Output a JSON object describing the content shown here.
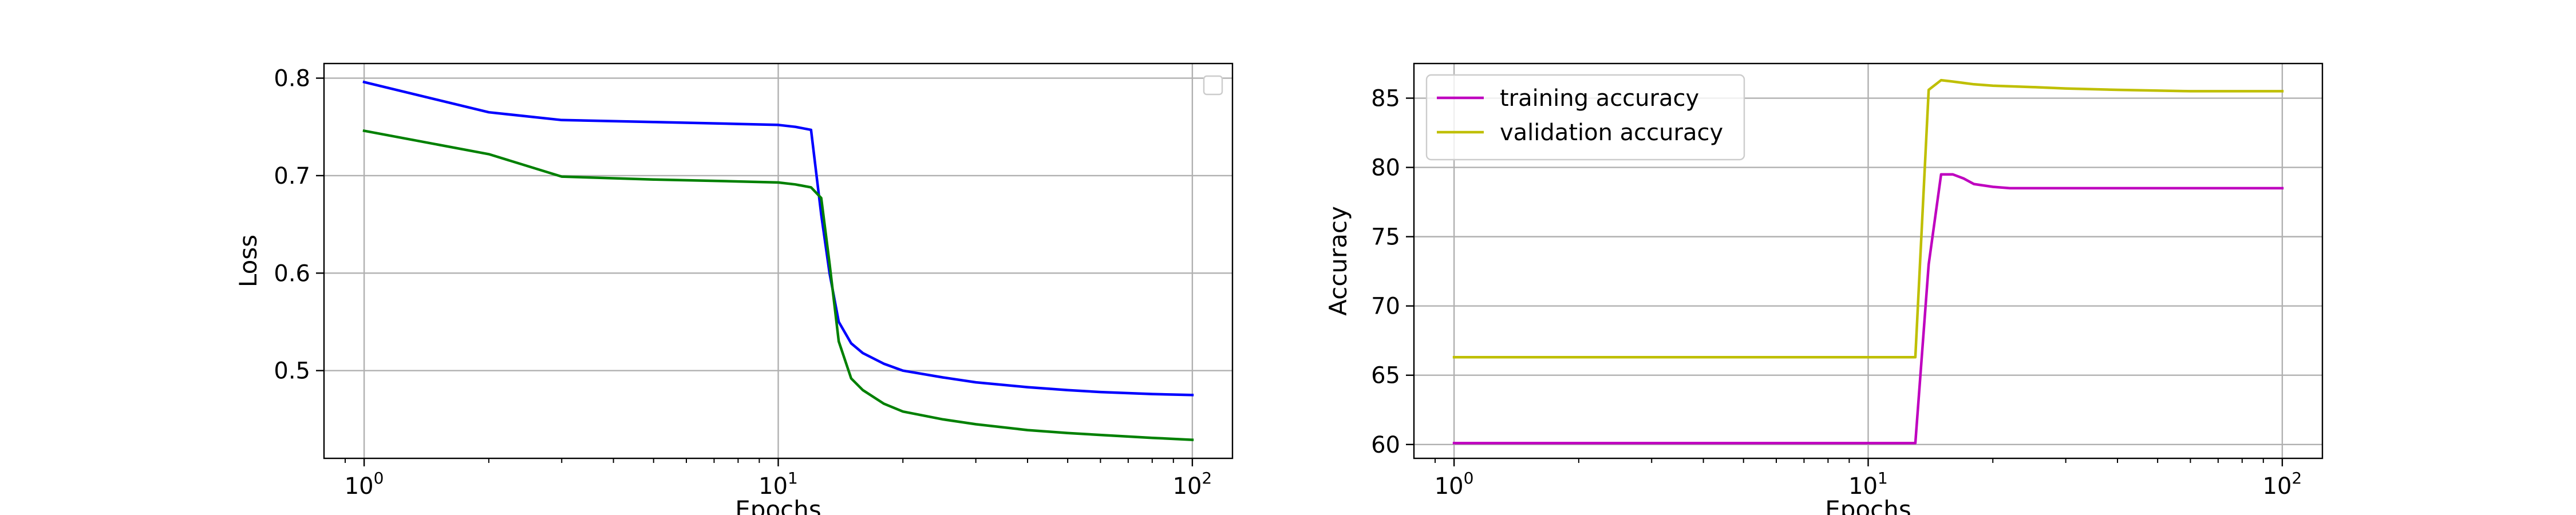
{
  "chart_data": [
    {
      "type": "line",
      "xlabel": "Epochs",
      "ylabel": "Loss",
      "xscale": "log",
      "xlim": [
        0.8,
        125
      ],
      "ylim": [
        0.41,
        0.815
      ],
      "xticks": [
        1,
        10,
        100
      ],
      "xtick_labels": [
        "10",
        "10",
        "10"
      ],
      "xtick_exponents": [
        "0",
        "1",
        "2"
      ],
      "yticks": [
        0.5,
        0.6,
        0.7,
        0.8
      ],
      "ytick_labels": [
        "0.5",
        "0.6",
        "0.7",
        "0.8"
      ],
      "grid": true,
      "legend": {
        "position": "top-right",
        "entries": []
      },
      "series": [
        {
          "color": "#0000ff",
          "x": [
            1,
            2,
            3,
            5,
            8,
            10,
            11,
            12,
            12.7,
            13.3,
            14,
            15,
            16,
            18,
            20,
            25,
            30,
            40,
            50,
            60,
            80,
            100
          ],
          "y": [
            0.796,
            0.765,
            0.757,
            0.755,
            0.753,
            0.752,
            0.75,
            0.747,
            0.66,
            0.6,
            0.55,
            0.528,
            0.518,
            0.507,
            0.5,
            0.493,
            0.488,
            0.483,
            0.48,
            0.478,
            0.476,
            0.475
          ]
        },
        {
          "color": "#008000",
          "x": [
            1,
            2,
            3,
            5,
            8,
            10,
            11,
            12,
            12.7,
            13.3,
            14,
            15,
            16,
            18,
            20,
            25,
            30,
            40,
            50,
            60,
            80,
            100
          ],
          "y": [
            0.746,
            0.722,
            0.699,
            0.696,
            0.694,
            0.693,
            0.691,
            0.688,
            0.677,
            0.61,
            0.53,
            0.492,
            0.48,
            0.466,
            0.458,
            0.45,
            0.445,
            0.439,
            0.436,
            0.434,
            0.431,
            0.429
          ]
        }
      ]
    },
    {
      "type": "line",
      "xlabel": "Epochs",
      "ylabel": "Accuracy",
      "xscale": "log",
      "xlim": [
        0.8,
        125
      ],
      "ylim": [
        59.0,
        87.5
      ],
      "xticks": [
        1,
        10,
        100
      ],
      "xtick_labels": [
        "10",
        "10",
        "10"
      ],
      "xtick_exponents": [
        "0",
        "1",
        "2"
      ],
      "yticks": [
        60,
        65,
        70,
        75,
        80,
        85
      ],
      "ytick_labels": [
        "60",
        "65",
        "70",
        "75",
        "80",
        "85"
      ],
      "grid": true,
      "legend": {
        "position": "top-left",
        "entries": [
          "training accuracy",
          "validation accuracy"
        ]
      },
      "series": [
        {
          "name": "training accuracy",
          "color": "#bf00bf",
          "x": [
            1,
            5,
            10,
            13,
            14,
            15,
            16,
            17,
            18,
            20,
            22,
            25,
            30,
            40,
            60,
            80,
            100
          ],
          "y": [
            60.1,
            60.1,
            60.1,
            60.1,
            73.0,
            79.5,
            79.5,
            79.2,
            78.8,
            78.6,
            78.5,
            78.5,
            78.5,
            78.5,
            78.5,
            78.5,
            78.5
          ]
        },
        {
          "name": "validation accuracy",
          "color": "#bfbf00",
          "x": [
            1,
            5,
            10,
            13,
            14,
            15,
            16,
            18,
            20,
            25,
            30,
            40,
            60,
            80,
            100
          ],
          "y": [
            66.3,
            66.3,
            66.3,
            66.3,
            85.6,
            86.3,
            86.2,
            86.0,
            85.9,
            85.8,
            85.7,
            85.6,
            85.5,
            85.5,
            85.5
          ]
        }
      ]
    }
  ]
}
